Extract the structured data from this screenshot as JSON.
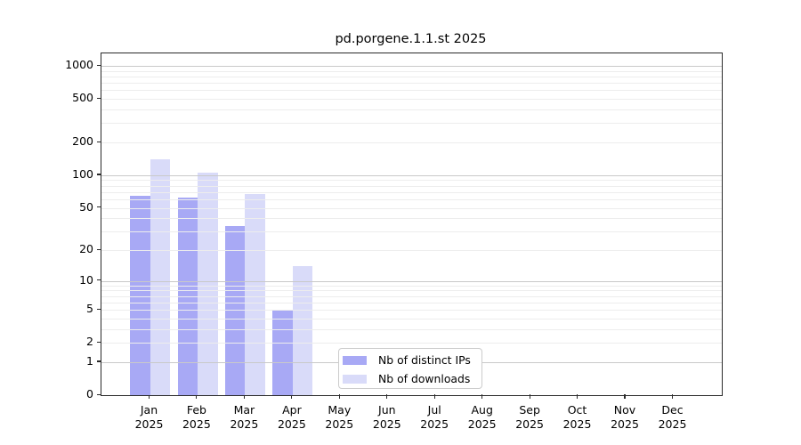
{
  "chart_data": {
    "type": "bar",
    "title": "pd.porgene.1.1.st 2025",
    "x_categories": [
      {
        "month": "Jan",
        "year": "2025"
      },
      {
        "month": "Feb",
        "year": "2025"
      },
      {
        "month": "Mar",
        "year": "2025"
      },
      {
        "month": "Apr",
        "year": "2025"
      },
      {
        "month": "May",
        "year": "2025"
      },
      {
        "month": "Jun",
        "year": "2025"
      },
      {
        "month": "Jul",
        "year": "2025"
      },
      {
        "month": "Aug",
        "year": "2025"
      },
      {
        "month": "Sep",
        "year": "2025"
      },
      {
        "month": "Oct",
        "year": "2025"
      },
      {
        "month": "Nov",
        "year": "2025"
      },
      {
        "month": "Dec",
        "year": "2025"
      }
    ],
    "series": [
      {
        "name": "Nb of distinct IPs",
        "key": "distinct-ips",
        "color": "#a8a9f5",
        "values": [
          65,
          62,
          34,
          5,
          null,
          null,
          null,
          null,
          null,
          null,
          null,
          null
        ]
      },
      {
        "name": "Nb of downloads",
        "key": "downloads",
        "color": "#d9dbf9",
        "values": [
          140,
          105,
          67,
          14,
          null,
          null,
          null,
          null,
          null,
          null,
          null,
          null
        ]
      }
    ],
    "y_axis": {
      "scale": "log1p",
      "ticks": [
        0,
        1,
        2,
        5,
        10,
        20,
        50,
        100,
        200,
        500,
        1000
      ],
      "limit_max": 1300
    },
    "gridlines": {
      "major": [
        1,
        10,
        100,
        1000
      ],
      "minor": [
        2,
        3,
        4,
        5,
        6,
        7,
        8,
        9,
        20,
        30,
        40,
        50,
        60,
        70,
        80,
        90,
        200,
        300,
        400,
        500,
        600,
        700,
        800,
        900
      ],
      "major_color": "#c9c9c9",
      "minor_color": "#ededed"
    },
    "legend_position": "lower center"
  }
}
